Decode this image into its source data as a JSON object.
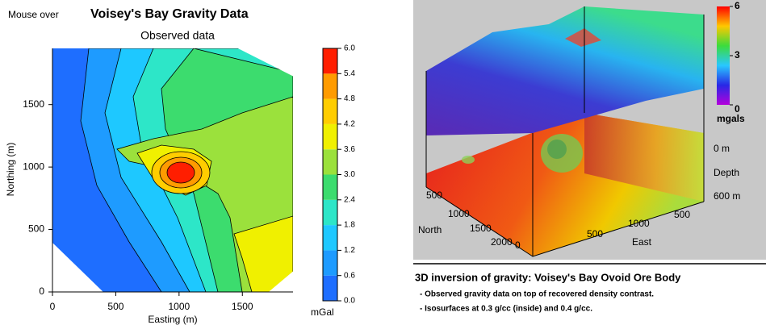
{
  "left": {
    "mouse_over": "Mouse over",
    "title": "Voisey's Bay Gravity Data",
    "subtitle": "Observed data",
    "x_label": "Easting (m)",
    "y_label": "Northing (m)",
    "xlim": [
      0,
      1900
    ],
    "ylim": [
      0,
      1950
    ],
    "xticks": [
      0,
      500,
      1000,
      1500
    ],
    "yticks": [
      0,
      500,
      1000,
      1500
    ],
    "colorbar": {
      "lim": [
        0,
        6
      ],
      "ticks": [
        {
          "value": 0,
          "label": "0.0"
        },
        0.6,
        1.2,
        1.8,
        2.4,
        {
          "value": 3,
          "label": "3.0"
        },
        3.6,
        4.2,
        4.8,
        5.4,
        {
          "value": 6,
          "label": "6.0"
        }
      ],
      "unit": "mGal",
      "colors": [
        "#1e6eff",
        "#1e9bff",
        "#1ec8ff",
        "#2de6c8",
        "#3cdc6e",
        "#9be13c",
        "#f0f000",
        "#ffcd00",
        "#ff9b00",
        "#ff1e00"
      ]
    }
  },
  "right": {
    "colorbar": {
      "lim": [
        0,
        6
      ],
      "ticks": [
        0,
        3,
        6
      ],
      "unit": "mgals"
    },
    "depth_labels": [
      "0 m",
      "Depth",
      "600 m"
    ],
    "north_label": "North",
    "north_ticks": [
      "500",
      "1000",
      "1500",
      "2000"
    ],
    "east_label": "East",
    "east_ticks": [
      "0",
      "500",
      "1000",
      "500"
    ],
    "caption": {
      "title": "3D inversion of gravity: Voisey's Bay Ovoid Ore Body",
      "lines": [
        "- Observed gravity data  on top of recovered density contrast.",
        "- Isosurfaces at 0.3 g/cc (inside) and 0.4 g/cc."
      ]
    }
  }
}
